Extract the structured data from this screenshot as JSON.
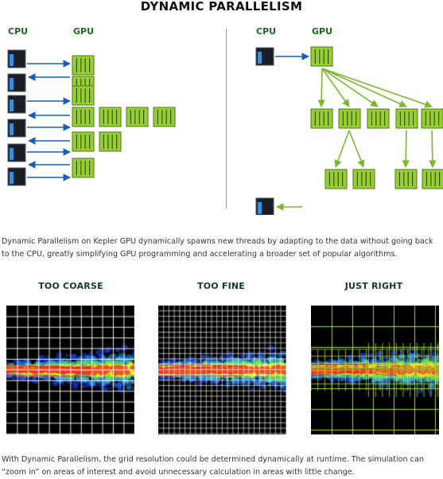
{
  "title": "DYNAMIC PARALLELISM",
  "left_diagram": {
    "cpu_label": "CPU",
    "gpu_label": "GPU"
  },
  "right_diagram": {
    "cpu_label": "CPU",
    "gpu_label": "GPU"
  },
  "caption_top": "Dynamic Parallelism on Kepler GPU dynamically spawns new threads by adapting to the data without going back to the CPU, greatly simplifying GPU programming and accelerating a broader set of popular algorithms.",
  "panels": [
    {
      "title": "TOO COARSE"
    },
    {
      "title": "TOO FINE"
    },
    {
      "title": "JUST RIGHT"
    }
  ],
  "caption_bottom": "With Dynamic Parallelism, the grid resolution could be determined dynamically at runtime. The simulation can “zoom in” on areas of interest and avoid unnecessary calculation in areas with little change.",
  "colors": {
    "cpu_box": "#1a1e28",
    "cpu_bar": "#3b8fd8",
    "gpu_fill": "#9acd32",
    "gpu_stripe": "#2d5a12",
    "arrow_blue": "#1b5fb4",
    "arrow_green": "#7cb82f",
    "label_green": "#1b6b1b"
  }
}
